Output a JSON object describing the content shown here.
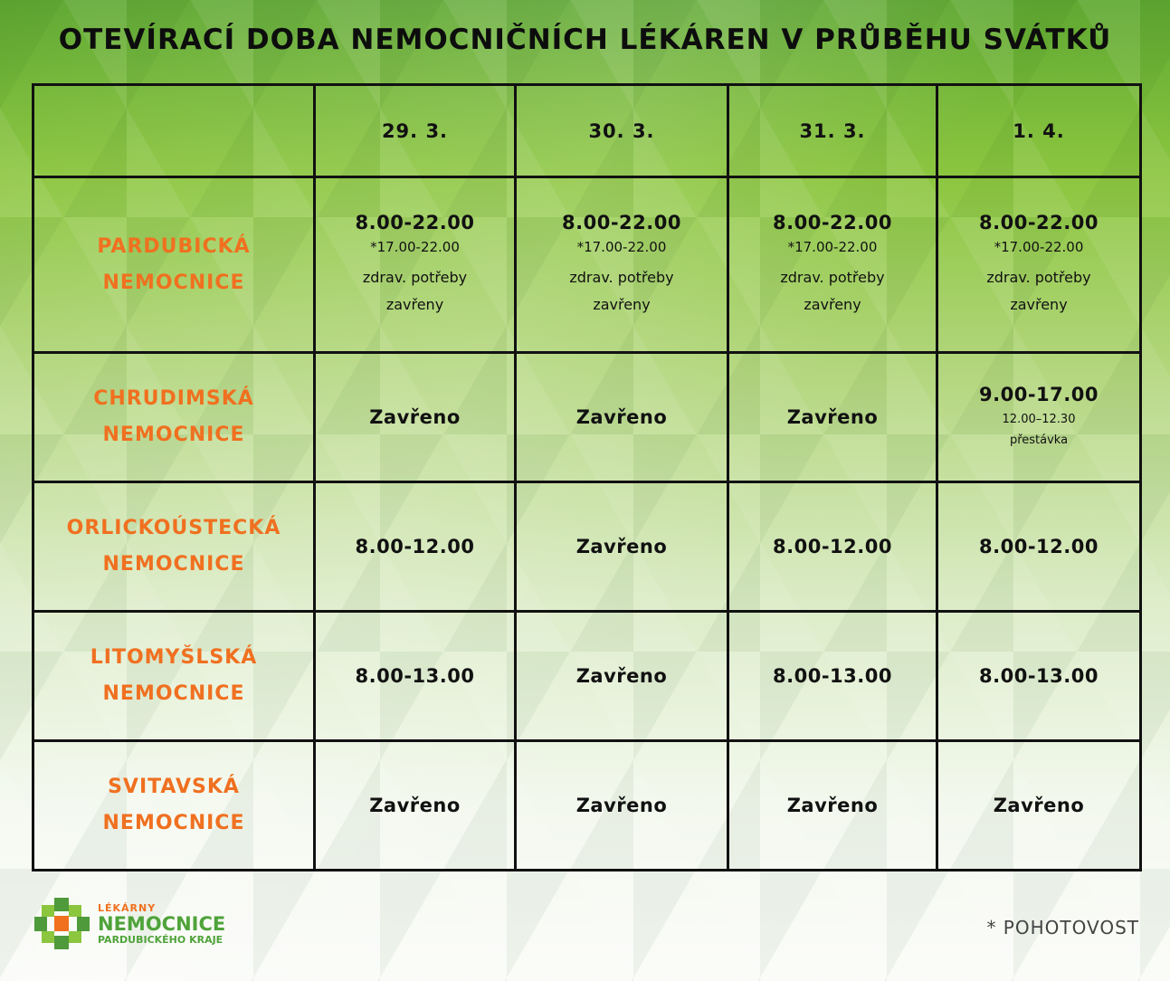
{
  "title": "OTEVÍRACÍ DOBA NEMOCNIČNÍCH LÉKÁREN V PRŮBĚHU SVÁTKŮ",
  "dates": [
    "29. 3.",
    "30. 3.",
    "31. 3.",
    "1. 4."
  ],
  "rows": [
    {
      "name": [
        "PARDUBICKÁ",
        "NEMOCNICE"
      ],
      "cells": [
        {
          "main": "8.00-22.00",
          "note": "*17.00-22.00",
          "extra": [
            "zdrav. potřeby",
            "zavřeny"
          ]
        },
        {
          "main": "8.00-22.00",
          "note": "*17.00-22.00",
          "extra": [
            "zdrav. potřeby",
            "zavřeny"
          ]
        },
        {
          "main": "8.00-22.00",
          "note": "*17.00-22.00",
          "extra": [
            "zdrav. potřeby",
            "zavřeny"
          ]
        },
        {
          "main": "8.00-22.00",
          "note": "*17.00-22.00",
          "extra": [
            "zdrav. potřeby",
            "zavřeny"
          ]
        }
      ]
    },
    {
      "name": [
        "CHRUDIMSKÁ",
        "NEMOCNICE"
      ],
      "cells": [
        {
          "main": "Zavřeno"
        },
        {
          "main": "Zavřeno"
        },
        {
          "main": "Zavřeno"
        },
        {
          "main": "9.00-17.00",
          "small": [
            "12.00–12.30",
            "přestávka"
          ]
        }
      ]
    },
    {
      "name": [
        "ORLICKOÚSTECKÁ",
        "NEMOCNICE"
      ],
      "cells": [
        {
          "main": "8.00-12.00"
        },
        {
          "main": "Zavřeno"
        },
        {
          "main": "8.00-12.00"
        },
        {
          "main": "8.00-12.00"
        }
      ]
    },
    {
      "name": [
        "LITOMYŠLSKÁ",
        "NEMOCNICE"
      ],
      "cells": [
        {
          "main": "8.00-13.00"
        },
        {
          "main": "Zavřeno"
        },
        {
          "main": "8.00-13.00"
        },
        {
          "main": "8.00-13.00"
        }
      ]
    },
    {
      "name": [
        "SVITAVSKÁ",
        "NEMOCNICE"
      ],
      "cells": [
        {
          "main": "Zavřeno"
        },
        {
          "main": "Zavřeno"
        },
        {
          "main": "Zavřeno"
        },
        {
          "main": "Zavřeno"
        }
      ]
    }
  ],
  "logo": {
    "line1": "LÉKÁRNY",
    "line2": "NEMOCNICE",
    "line3": "PARDUBICKÉHO KRAJE"
  },
  "footnote": "* POHOTOVOST",
  "colors": {
    "accent": "#f07020",
    "brand_green": "#4fa33a"
  }
}
